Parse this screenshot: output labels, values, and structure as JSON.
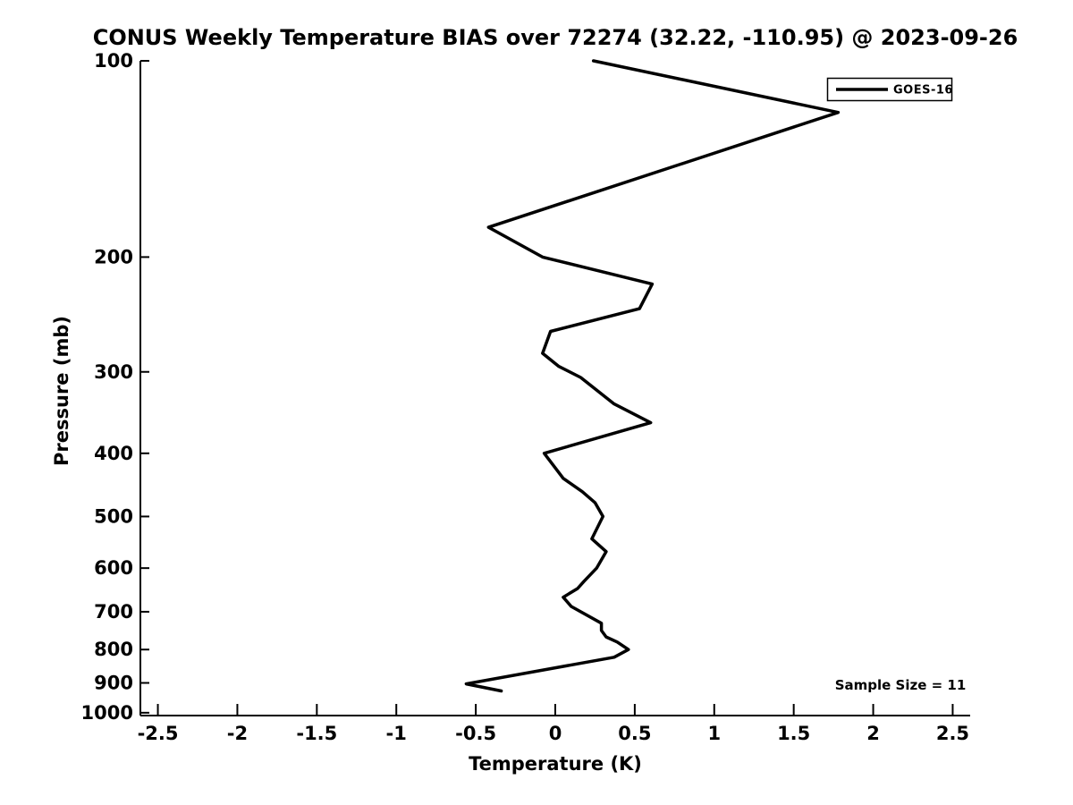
{
  "figure": {
    "background_color": "#ffffff",
    "foreground_color": "#000000"
  },
  "chart_data": {
    "type": "line",
    "title": "CONUS Weekly Temperature BIAS over 72274 (32.22, -110.95) @ 2023-09-26",
    "xlabel": "Temperature (K)",
    "ylabel": "Pressure (mb)",
    "x_ticks": [
      -2.5,
      -2,
      -1.5,
      -1,
      -0.5,
      0,
      0.5,
      1,
      1.5,
      2,
      2.5
    ],
    "x_tick_labels": [
      "-2.5",
      "-2",
      "-1.5",
      "-1",
      "-0.5",
      "0",
      "0.5",
      "1",
      "1.5",
      "2",
      "2.5"
    ],
    "y_ticks": [
      100,
      200,
      300,
      400,
      500,
      600,
      700,
      800,
      900,
      1000
    ],
    "y_tick_labels": [
      "100",
      "200",
      "300",
      "400",
      "500",
      "600",
      "700",
      "800",
      "900",
      "1000"
    ],
    "xlim": [
      -2.61,
      2.61
    ],
    "ylim_pressure": [
      100,
      1010
    ],
    "y_scale": "log",
    "y_orientation": "pressure increases downward",
    "grid": false,
    "points_format": "[temperature_K, pressure_mb]",
    "series": [
      {
        "name": "GOES-16",
        "color": "#000000",
        "line_width": 3.5,
        "points": [
          [
            0.24,
            100
          ],
          [
            1.78,
            120
          ],
          [
            -0.42,
            180
          ],
          [
            -0.08,
            200
          ],
          [
            0.61,
            220
          ],
          [
            0.53,
            240
          ],
          [
            -0.03,
            260
          ],
          [
            -0.08,
            281
          ],
          [
            0.02,
            294
          ],
          [
            0.16,
            306
          ],
          [
            0.37,
            336
          ],
          [
            0.6,
            359
          ],
          [
            -0.07,
            400
          ],
          [
            0.05,
            437
          ],
          [
            0.17,
            458
          ],
          [
            0.25,
            476
          ],
          [
            0.3,
            500
          ],
          [
            0.23,
            541
          ],
          [
            0.32,
            566
          ],
          [
            0.26,
            600
          ],
          [
            0.18,
            629
          ],
          [
            0.14,
            645
          ],
          [
            0.05,
            665
          ],
          [
            0.1,
            687
          ],
          [
            0.29,
            729
          ],
          [
            0.29,
            748
          ],
          [
            0.32,
            765
          ],
          [
            0.39,
            779
          ],
          [
            0.46,
            800
          ],
          [
            0.37,
            822
          ],
          [
            -0.56,
            903
          ],
          [
            -0.34,
            926
          ]
        ]
      }
    ]
  },
  "legend": {
    "label": "GOES-16",
    "position": "top-right",
    "border_color": "#000000",
    "background": "#ffffff"
  },
  "annotation": {
    "text": "Sample Size = 11"
  }
}
